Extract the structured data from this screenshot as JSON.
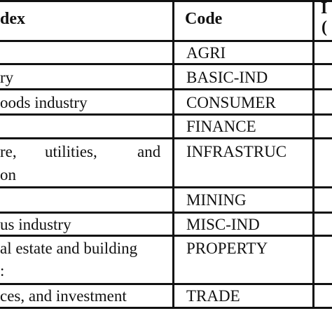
{
  "table": {
    "headers": {
      "index": "dex",
      "code": "Code",
      "third_top": "I",
      "third_bottom": "("
    },
    "rows": [
      {
        "sector_lines": [
          ""
        ],
        "code": "AGRI"
      },
      {
        "sector_lines": [
          "ry"
        ],
        "code": "BASIC-IND"
      },
      {
        "sector_lines": [
          "oods industry"
        ],
        "code": "CONSUMER"
      },
      {
        "sector_lines": [
          ""
        ],
        "code": "FINANCE"
      },
      {
        "sector_parts": [
          "re,",
          "utilities,",
          "and"
        ],
        "sector_line2": "on",
        "code": "INFRASTRUC"
      },
      {
        "sector_lines": [
          ""
        ],
        "code": "MINING"
      },
      {
        "sector_lines": [
          "us industry"
        ],
        "code": "MISC-IND"
      },
      {
        "sector_lines": [
          "al estate and building"
        ],
        "sector_line2": ":",
        "code": "PROPERTY"
      },
      {
        "sector_lines": [
          "ces, and investment"
        ],
        "code": "TRADE"
      }
    ]
  }
}
